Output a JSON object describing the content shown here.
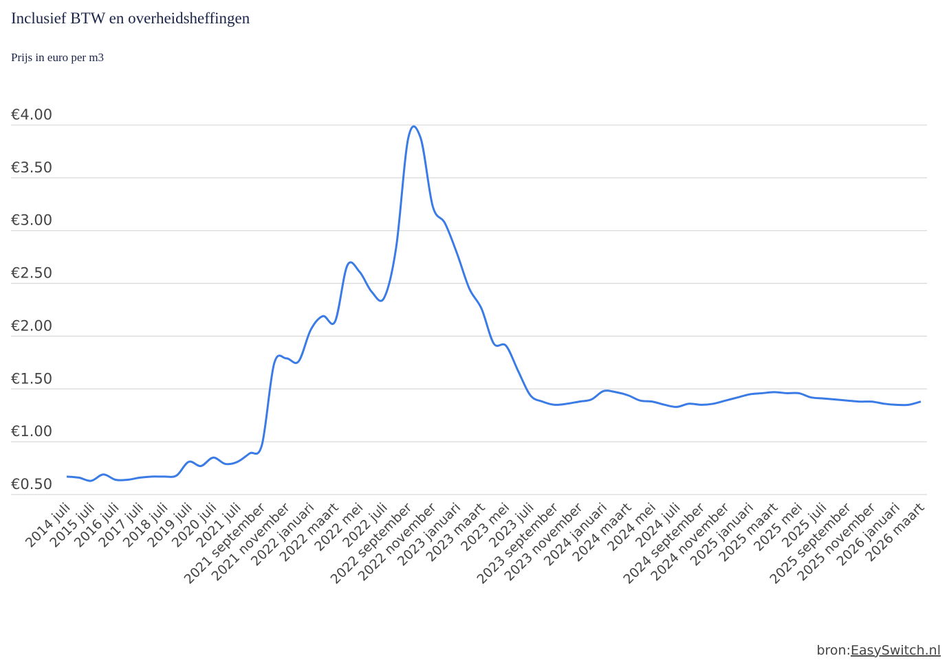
{
  "chart_data": {
    "type": "line",
    "title": "Inclusief BTW en overheidsheffingen",
    "subtitle": "Prijs in euro per m3",
    "categories": [
      "2014 juli",
      null,
      "2015 juli",
      null,
      "2016 juli",
      null,
      "2017 juli",
      null,
      "2018 juli",
      null,
      "2019 juli",
      null,
      "2020 juli",
      null,
      "2021 juli",
      null,
      "2021 september",
      null,
      "2021 november",
      null,
      "2022 januari",
      null,
      "2022 maart",
      null,
      "2022 mei",
      null,
      "2022 juli",
      null,
      "2022 september",
      null,
      "2022 november",
      null,
      "2023 januari",
      null,
      "2023 maart",
      null,
      "2023 mei",
      null,
      "2023 juli",
      null,
      "2023 september",
      null,
      "2023 november",
      null,
      "2024 januari",
      null,
      "2024 maart",
      null,
      "2024 mei",
      null,
      "2024 juli",
      null,
      "2024 september",
      null,
      "2024 november",
      null,
      "2025 januari",
      null,
      "2025 maart",
      null,
      "2025 mei",
      null,
      "2025 juli",
      null,
      "2025 september",
      null,
      "2025 november",
      null,
      "2026 januari",
      null,
      "2026 maart"
    ],
    "series": [
      {
        "color": "#3b7be6",
        "values": [
          0.67,
          0.66,
          0.63,
          0.69,
          0.64,
          0.64,
          0.66,
          0.67,
          0.67,
          0.68,
          0.81,
          0.77,
          0.85,
          0.79,
          0.81,
          0.89,
          0.97,
          1.74,
          1.79,
          1.76,
          2.06,
          2.19,
          2.14,
          2.67,
          2.61,
          2.42,
          2.36,
          2.84,
          3.88,
          3.88,
          3.23,
          3.07,
          2.78,
          2.45,
          2.26,
          1.93,
          1.91,
          1.67,
          1.44,
          1.38,
          1.35,
          1.36,
          1.38,
          1.4,
          1.48,
          1.47,
          1.44,
          1.39,
          1.38,
          1.35,
          1.33,
          1.36,
          1.35,
          1.36,
          1.39,
          1.42,
          1.45,
          1.46,
          1.47,
          1.46,
          1.46,
          1.42,
          1.41,
          1.4,
          1.39,
          1.38,
          1.38,
          1.36,
          1.35,
          1.35,
          1.38
        ]
      }
    ],
    "ylim": [
      0.5,
      4
    ],
    "yticks": [
      {
        "value": 0.5,
        "label": "€0.50"
      },
      {
        "value": 1,
        "label": "€1.00"
      },
      {
        "value": 1.5,
        "label": "€1.50"
      },
      {
        "value": 2,
        "label": "€2.00"
      },
      {
        "value": 2.5,
        "label": "€2.50"
      },
      {
        "value": 3,
        "label": "€3.00"
      },
      {
        "value": 3.5,
        "label": "€3.50"
      },
      {
        "value": 4,
        "label": "€4.00"
      }
    ],
    "grid": true
  },
  "source": {
    "prefix": "bron:",
    "link": "EasySwitch.nl"
  }
}
